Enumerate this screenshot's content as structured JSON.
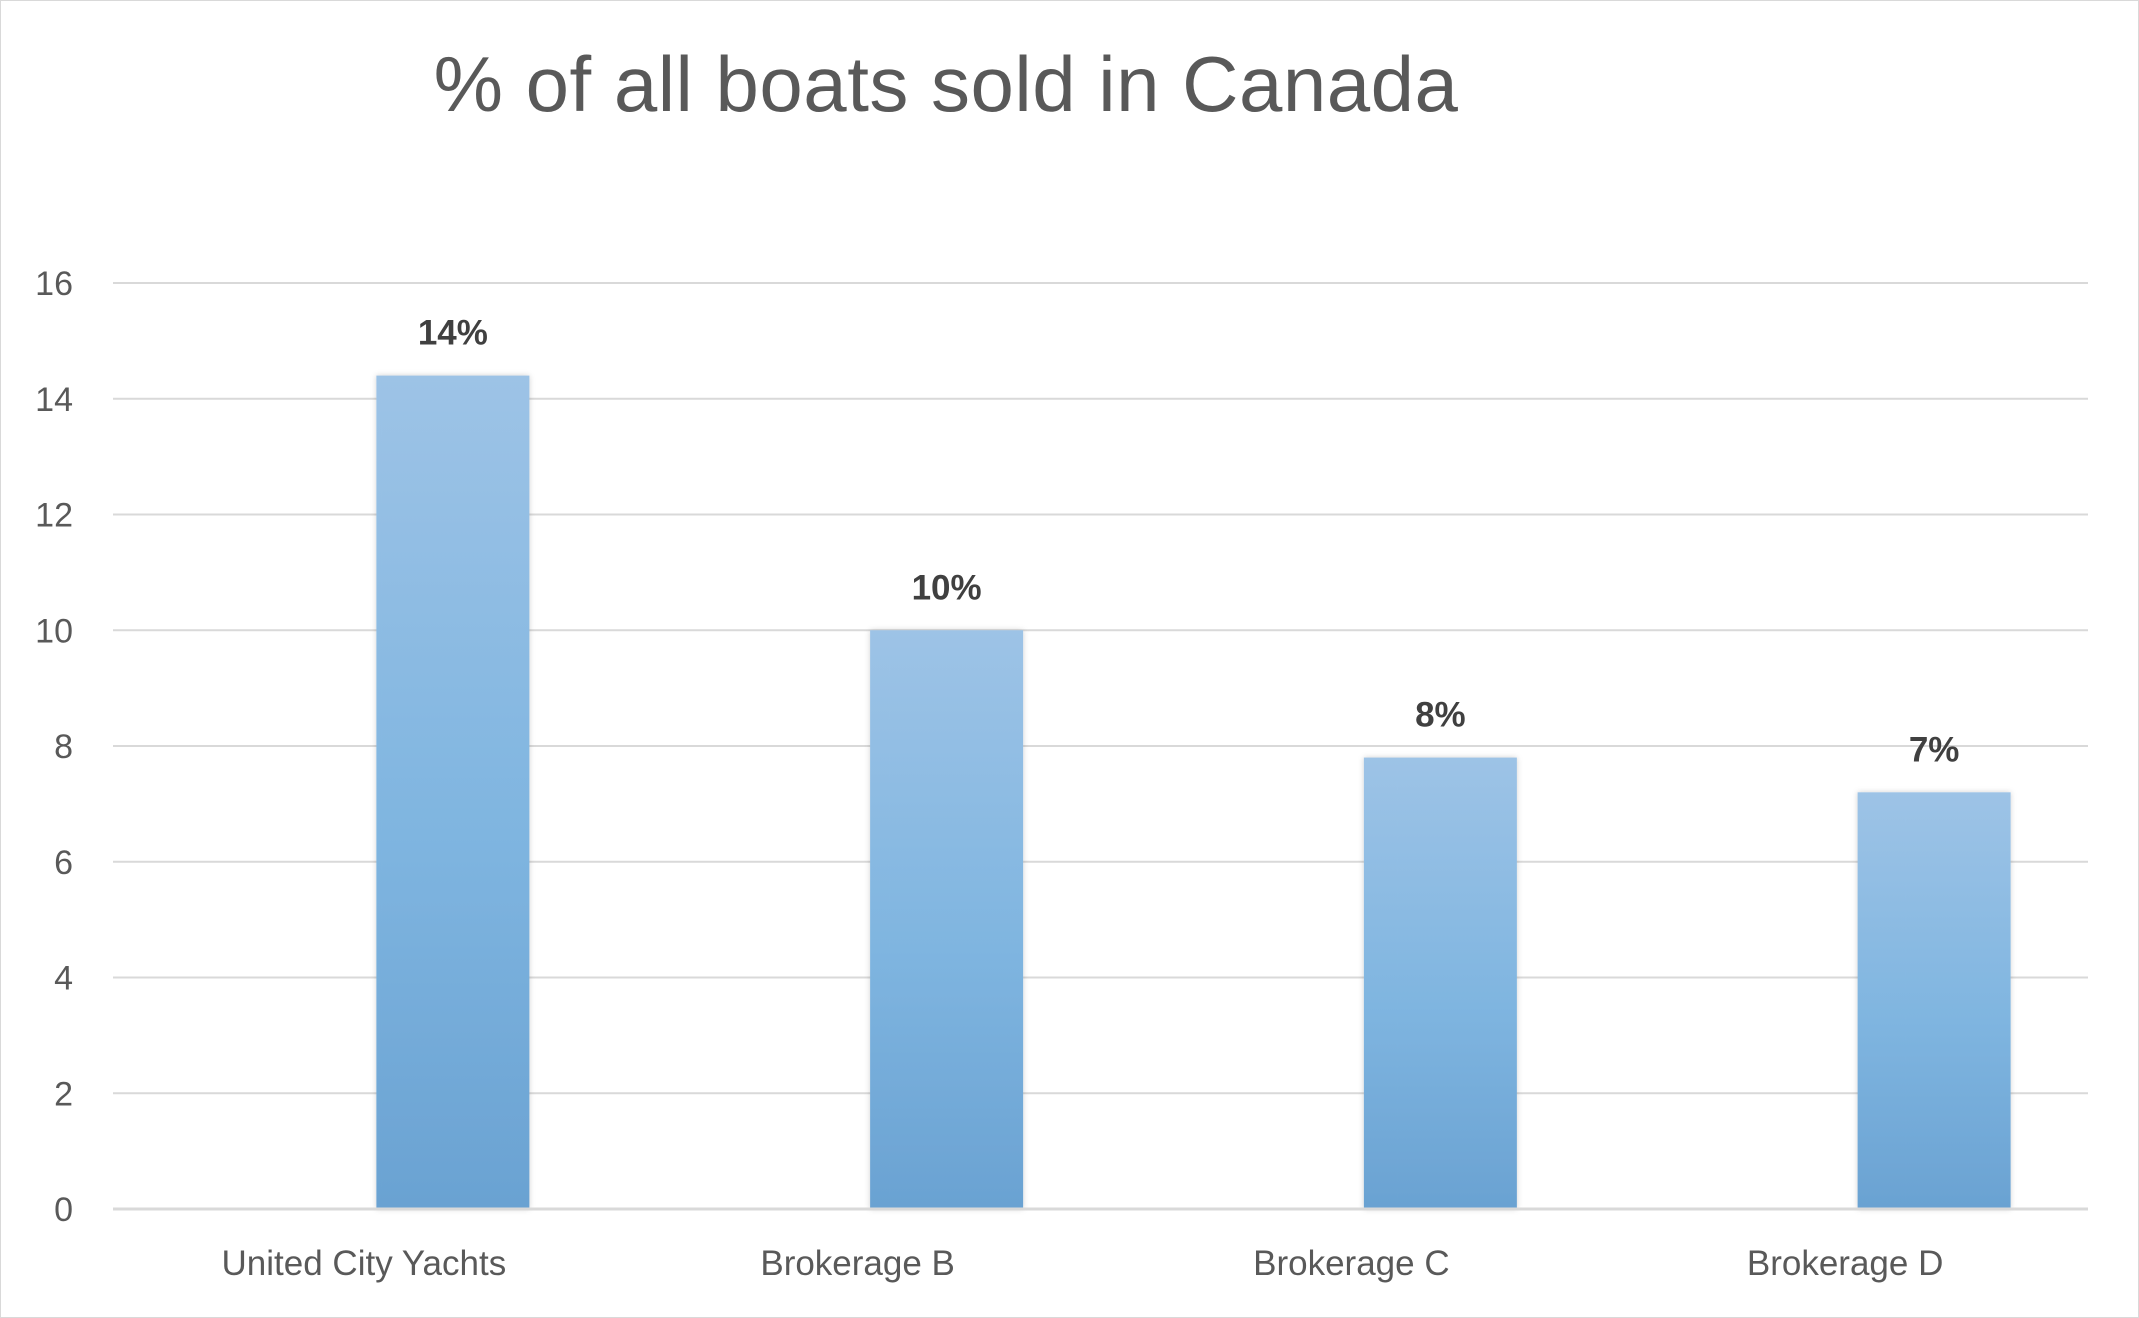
{
  "chart_data": {
    "type": "bar",
    "title": "% of all boats sold in Canada",
    "xlabel": "",
    "ylabel": "",
    "categories": [
      "United City Yachts",
      "Brokerage B",
      "Brokerage C",
      "Brokerage D"
    ],
    "values": [
      14.4,
      10,
      7.8,
      7.2
    ],
    "data_labels": [
      "14%",
      "10%",
      "8%",
      "7%"
    ],
    "ylim": [
      0,
      16
    ],
    "yticks": [
      0,
      2,
      4,
      6,
      8,
      10,
      12,
      14,
      16
    ],
    "grid": true,
    "legend": "none",
    "colors": {
      "bar_top": "#9dc3e6",
      "bar_mid": "#7fb5e0",
      "bar_bottom": "#6aa2d2",
      "gridline": "#d9d9d9",
      "axis": "#d9d9d9",
      "text": "#595959",
      "data_label": "#404040"
    }
  }
}
